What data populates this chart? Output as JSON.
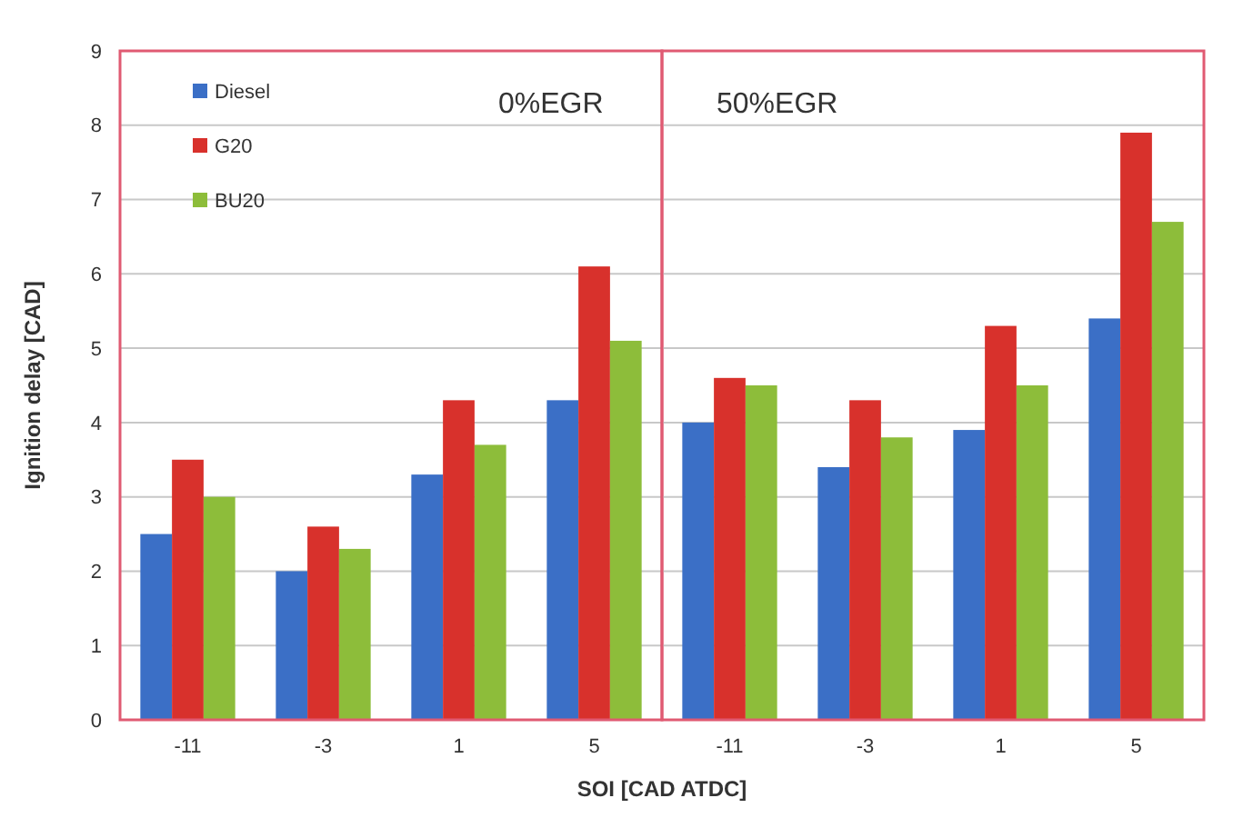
{
  "chart_data": [
    {
      "type": "bar",
      "xlabel": "SOI [CAD ATDC]",
      "ylabel": "Ignition delay [CAD]",
      "categories": [
        "-11",
        "-3",
        "1",
        "5"
      ],
      "series": [
        {
          "name": "Diesel",
          "color": "#3b6fc6",
          "values": [
            2.5,
            2.0,
            3.3,
            4.3
          ]
        },
        {
          "name": "G20",
          "color": "#d8312c",
          "values": [
            3.5,
            2.6,
            4.3,
            6.1
          ]
        },
        {
          "name": "BU20",
          "color": "#8dbd3a",
          "values": [
            3.0,
            2.3,
            3.7,
            5.1
          ]
        }
      ],
      "annotations": [
        "0%EGR"
      ],
      "ylim": [
        0,
        9
      ],
      "yticks": [
        0,
        1,
        2,
        3,
        4,
        5,
        6,
        7,
        8,
        9
      ],
      "grid": "y",
      "legend": "top left"
    },
    {
      "type": "bar",
      "categories": [
        "-11",
        "-3",
        "1",
        "5"
      ],
      "series": [
        {
          "color": "#3b6fc6",
          "values": [
            4.0,
            3.4,
            3.9,
            5.4
          ]
        },
        {
          "color": "#d8312c",
          "values": [
            4.6,
            4.3,
            5.3,
            7.9
          ]
        },
        {
          "color": "#8dbd3a",
          "values": [
            4.5,
            3.8,
            4.5,
            6.7
          ]
        }
      ],
      "annotations": [
        "50%EGR"
      ],
      "ylim": [
        0,
        9
      ],
      "yticks": [
        0,
        1,
        2,
        3,
        4,
        5,
        6,
        7,
        8,
        9
      ],
      "grid": "y",
      "tick_labels": "x"
    }
  ]
}
